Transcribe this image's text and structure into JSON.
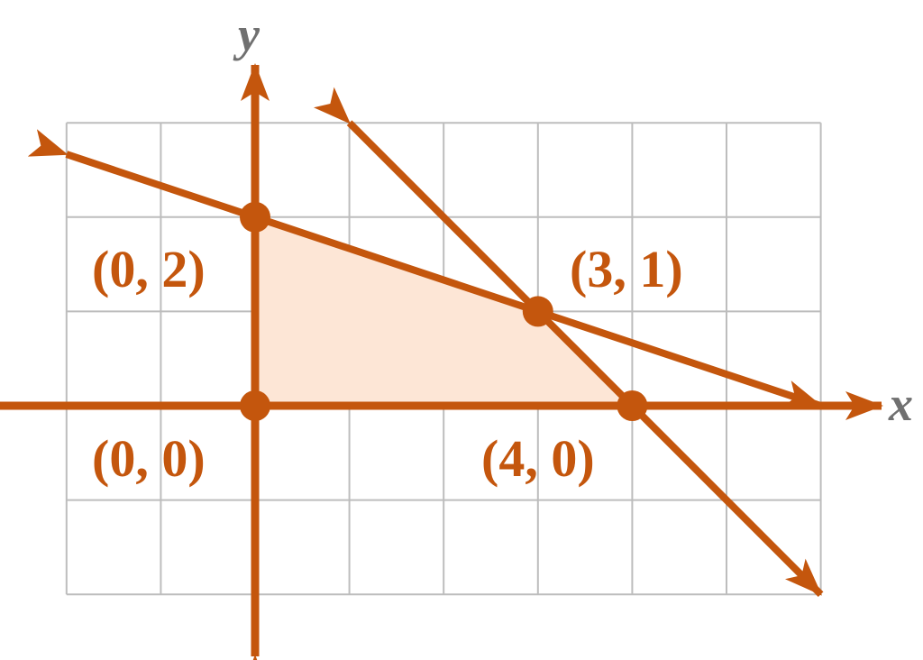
{
  "axes": {
    "x_label": "x",
    "y_label": "y"
  },
  "grid": {
    "x_range": [
      -2,
      6
    ],
    "y_range": [
      -2,
      3
    ]
  },
  "feasible_region": {
    "vertices": [
      [
        0,
        0
      ],
      [
        0,
        2
      ],
      [
        3,
        1
      ],
      [
        4,
        0
      ]
    ],
    "fill_color": "#fde6d6"
  },
  "lines": [
    {
      "id": "line-a",
      "from": [
        -2,
        2.6667
      ],
      "to": [
        6,
        0
      ]
    },
    {
      "id": "line-b",
      "from": [
        1,
        3
      ],
      "to": [
        6,
        -2
      ]
    }
  ],
  "points": [
    {
      "id": "origin",
      "coords": [
        0,
        0
      ],
      "label": "(0, 0)"
    },
    {
      "id": "y-intercept",
      "coords": [
        0,
        2
      ],
      "label": "(0, 2)"
    },
    {
      "id": "intersection",
      "coords": [
        3,
        1
      ],
      "label": "(3, 1)"
    },
    {
      "id": "x-intercept",
      "coords": [
        4,
        0
      ],
      "label": "(4, 0)"
    }
  ],
  "colors": {
    "line": "#c4560d",
    "grid": "#bdbdbd",
    "axis_label": "#707070"
  }
}
